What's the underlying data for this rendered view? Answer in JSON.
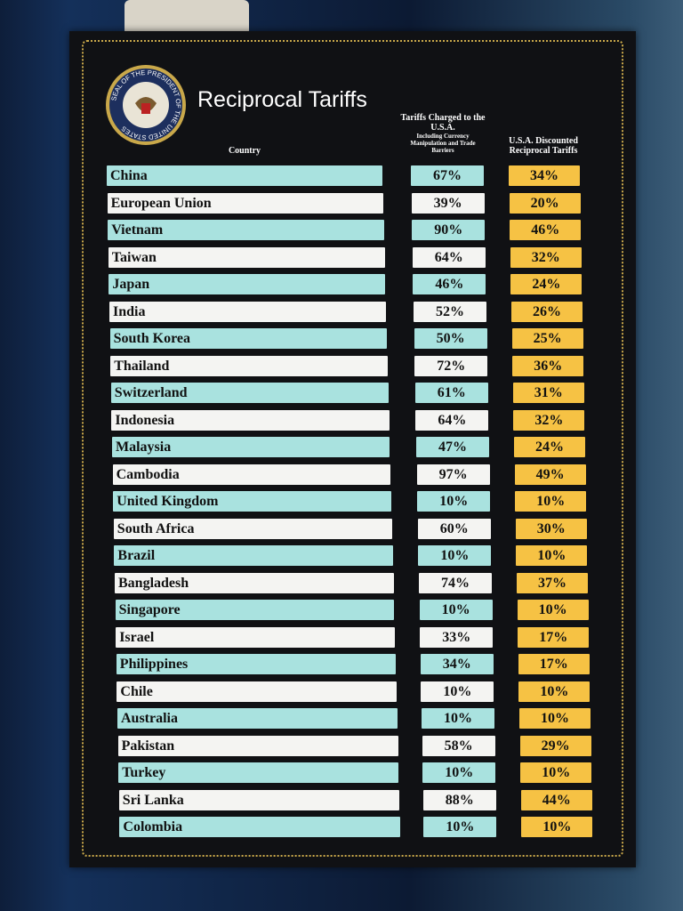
{
  "seal_text": "SEAL OF THE PRESIDENT OF THE UNITED STATES",
  "header": {
    "title": "Reciprocal Tariffs"
  },
  "table": {
    "columns": [
      "Country",
      "Tariffs Charged to the U.S.A.",
      "U.S.A. Discounted Reciprocal Tariffs"
    ],
    "column_note": "Including Currency Manipulation and Trade Barriers",
    "rows": [
      [
        "China",
        "67%",
        "34%"
      ],
      [
        "European Union",
        "39%",
        "20%"
      ],
      [
        "Vietnam",
        "90%",
        "46%"
      ],
      [
        "Taiwan",
        "64%",
        "32%"
      ],
      [
        "Japan",
        "46%",
        "24%"
      ],
      [
        "India",
        "52%",
        "26%"
      ],
      [
        "South Korea",
        "50%",
        "25%"
      ],
      [
        "Thailand",
        "72%",
        "36%"
      ],
      [
        "Switzerland",
        "61%",
        "31%"
      ],
      [
        "Indonesia",
        "64%",
        "32%"
      ],
      [
        "Malaysia",
        "47%",
        "24%"
      ],
      [
        "Cambodia",
        "97%",
        "49%"
      ],
      [
        "United Kingdom",
        "10%",
        "10%"
      ],
      [
        "South Africa",
        "60%",
        "30%"
      ],
      [
        "Brazil",
        "10%",
        "10%"
      ],
      [
        "Bangladesh",
        "74%",
        "37%"
      ],
      [
        "Singapore",
        "10%",
        "10%"
      ],
      [
        "Israel",
        "33%",
        "17%"
      ],
      [
        "Philippines",
        "34%",
        "17%"
      ],
      [
        "Chile",
        "10%",
        "10%"
      ],
      [
        "Australia",
        "10%",
        "10%"
      ],
      [
        "Pakistan",
        "58%",
        "29%"
      ],
      [
        "Turkey",
        "10%",
        "10%"
      ],
      [
        "Sri Lanka",
        "88%",
        "44%"
      ],
      [
        "Colombia",
        "10%",
        "10%"
      ]
    ]
  }
}
